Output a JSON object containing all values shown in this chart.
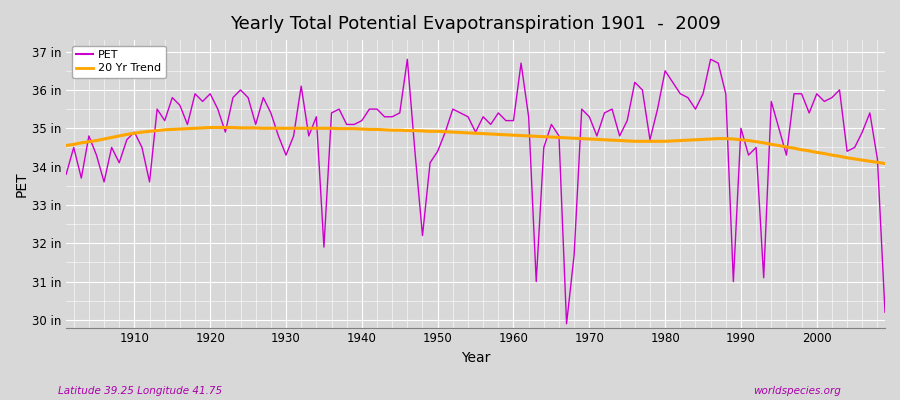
{
  "title": "Yearly Total Potential Evapotranspiration 1901  -  2009",
  "xlabel": "Year",
  "ylabel": "PET",
  "subtitle_left": "Latitude 39.25 Longitude 41.75",
  "subtitle_right": "worldspecies.org",
  "pet_color": "#cc00cc",
  "trend_color": "#ffa500",
  "bg_color": "#d8d8d8",
  "plot_bg": "#d8d8d8",
  "ylim": [
    29.8,
    37.3
  ],
  "yticks": [
    30,
    31,
    32,
    33,
    34,
    35,
    36,
    37
  ],
  "ytick_labels": [
    "30 in",
    "31 in",
    "32 in",
    "33 in",
    "34 in",
    "35 in",
    "36 in",
    "37 in"
  ],
  "years": [
    1901,
    1902,
    1903,
    1904,
    1905,
    1906,
    1907,
    1908,
    1909,
    1910,
    1911,
    1912,
    1913,
    1914,
    1915,
    1916,
    1917,
    1918,
    1919,
    1920,
    1921,
    1922,
    1923,
    1924,
    1925,
    1926,
    1927,
    1928,
    1929,
    1930,
    1931,
    1932,
    1933,
    1934,
    1935,
    1936,
    1937,
    1938,
    1939,
    1940,
    1941,
    1942,
    1943,
    1944,
    1945,
    1946,
    1947,
    1948,
    1949,
    1950,
    1951,
    1952,
    1953,
    1954,
    1955,
    1956,
    1957,
    1958,
    1959,
    1960,
    1961,
    1962,
    1963,
    1964,
    1965,
    1966,
    1967,
    1968,
    1969,
    1970,
    1971,
    1972,
    1973,
    1974,
    1975,
    1976,
    1977,
    1978,
    1979,
    1980,
    1981,
    1982,
    1983,
    1984,
    1985,
    1986,
    1987,
    1988,
    1989,
    1990,
    1991,
    1992,
    1993,
    1994,
    1995,
    1996,
    1997,
    1998,
    1999,
    2000,
    2001,
    2002,
    2003,
    2004,
    2005,
    2006,
    2007,
    2008,
    2009
  ],
  "pet": [
    33.8,
    34.5,
    33.7,
    34.8,
    34.3,
    33.6,
    34.5,
    34.1,
    34.7,
    34.9,
    34.5,
    33.6,
    35.5,
    35.2,
    35.8,
    35.6,
    35.1,
    35.9,
    35.7,
    35.9,
    35.5,
    34.9,
    35.8,
    36.0,
    35.8,
    35.1,
    35.8,
    35.4,
    34.8,
    34.3,
    34.8,
    36.1,
    34.8,
    35.3,
    31.9,
    35.4,
    35.5,
    35.1,
    35.1,
    35.2,
    35.5,
    35.5,
    35.3,
    35.3,
    35.4,
    36.8,
    34.4,
    32.2,
    34.1,
    34.4,
    34.9,
    35.5,
    35.4,
    35.3,
    34.9,
    35.3,
    35.1,
    35.4,
    35.2,
    35.2,
    36.7,
    35.3,
    31.0,
    34.5,
    35.1,
    34.8,
    29.9,
    31.7,
    35.5,
    35.3,
    34.8,
    35.4,
    35.5,
    34.8,
    35.2,
    36.2,
    36.0,
    34.7,
    35.5,
    36.5,
    36.2,
    35.9,
    35.8,
    35.5,
    35.9,
    36.8,
    36.7,
    35.9,
    31.0,
    35.0,
    34.3,
    34.5,
    31.1,
    35.7,
    35.0,
    34.3,
    35.9,
    35.9,
    35.4,
    35.9,
    35.7,
    35.8,
    36.0,
    34.4,
    34.5,
    34.9,
    35.4,
    34.2,
    30.2
  ],
  "trend": [
    34.55,
    34.58,
    34.62,
    34.65,
    34.68,
    34.72,
    34.76,
    34.8,
    34.84,
    34.87,
    34.9,
    34.92,
    34.94,
    34.96,
    34.97,
    34.98,
    34.99,
    35.0,
    35.01,
    35.02,
    35.02,
    35.02,
    35.02,
    35.01,
    35.01,
    35.01,
    35.0,
    35.0,
    35.0,
    35.0,
    35.0,
    35.0,
    35.0,
    35.0,
    35.0,
    35.0,
    34.99,
    34.99,
    34.99,
    34.98,
    34.97,
    34.97,
    34.96,
    34.95,
    34.95,
    34.94,
    34.94,
    34.93,
    34.92,
    34.92,
    34.91,
    34.9,
    34.89,
    34.88,
    34.87,
    34.86,
    34.85,
    34.84,
    34.83,
    34.82,
    34.81,
    34.8,
    34.79,
    34.78,
    34.77,
    34.76,
    34.75,
    34.74,
    34.73,
    34.72,
    34.71,
    34.7,
    34.69,
    34.68,
    34.67,
    34.66,
    34.66,
    34.66,
    34.66,
    34.66,
    34.67,
    34.68,
    34.69,
    34.7,
    34.71,
    34.72,
    34.73,
    34.73,
    34.72,
    34.7,
    34.68,
    34.65,
    34.62,
    34.58,
    34.55,
    34.51,
    34.48,
    34.44,
    34.41,
    34.37,
    34.34,
    34.3,
    34.27,
    34.23,
    34.2,
    34.17,
    34.14,
    34.11,
    34.08
  ]
}
